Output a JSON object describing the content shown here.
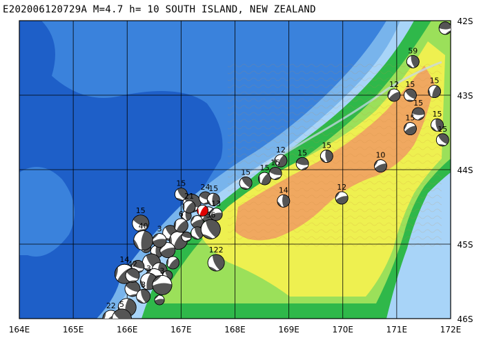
{
  "title": "E202006120729A M=4.7 h= 10 SOUTH ISLAND, NEW ZEALAND",
  "axes": {
    "longitude_ticks": [
      "164E",
      "165E",
      "166E",
      "167E",
      "168E",
      "169E",
      "170E",
      "171E",
      "172E"
    ],
    "latitude_ticks": [
      "42S",
      "43S",
      "44S",
      "45S",
      "46S"
    ],
    "lon_range": [
      164,
      172
    ],
    "lat_range": [
      -46,
      -42
    ]
  },
  "colors": {
    "deep_ocean": "#1e5fc8",
    "mid_ocean": "#3a82dc",
    "shelf": "#78b4ec",
    "shallow": "#a8d4f8",
    "lowland": "#2fb84a",
    "plain": "#9be05a",
    "hills": "#eef050",
    "mountains": "#f0a860",
    "beachball_dark": "#555555",
    "main_event": "#e00000"
  },
  "main_event": {
    "lon": 167.4,
    "lat": -44.55
  },
  "events": [
    {
      "label": "15",
      "lon": 171.9,
      "lat": -42.1
    },
    {
      "label": "59",
      "lon": 171.3,
      "lat": -42.55
    },
    {
      "label": "12",
      "lon": 170.95,
      "lat": -43.0
    },
    {
      "label": "15",
      "lon": 171.25,
      "lat": -43.0
    },
    {
      "label": "15",
      "lon": 171.7,
      "lat": -42.95
    },
    {
      "label": "15",
      "lon": 171.4,
      "lat": -43.25
    },
    {
      "label": "15",
      "lon": 171.75,
      "lat": -43.4
    },
    {
      "label": "15",
      "lon": 171.25,
      "lat": -43.45
    },
    {
      "label": "15",
      "lon": 171.85,
      "lat": -43.6
    },
    {
      "label": "12",
      "lon": 168.85,
      "lat": -43.88
    },
    {
      "label": "15",
      "lon": 169.25,
      "lat": -43.92
    },
    {
      "label": "15",
      "lon": 169.7,
      "lat": -43.82
    },
    {
      "label": "10",
      "lon": 170.7,
      "lat": -43.95
    },
    {
      "label": "15",
      "lon": 168.2,
      "lat": -44.18
    },
    {
      "label": "15",
      "lon": 168.55,
      "lat": -44.12
    },
    {
      "label": "15",
      "lon": 168.75,
      "lat": -44.05
    },
    {
      "label": "14",
      "lon": 168.9,
      "lat": -44.42
    },
    {
      "label": "12",
      "lon": 169.98,
      "lat": -44.38
    },
    {
      "label": "15",
      "lon": 167.0,
      "lat": -44.33
    },
    {
      "label": "21",
      "lon": 167.15,
      "lat": -44.5
    },
    {
      "label": "24",
      "lon": 167.45,
      "lat": -44.38
    },
    {
      "label": "15",
      "lon": 167.6,
      "lat": -44.4
    },
    {
      "label": "13",
      "lon": 167.65,
      "lat": -44.6
    },
    {
      "label": "36",
      "lon": 167.55,
      "lat": -44.8
    },
    {
      "label": "6",
      "lon": 167.0,
      "lat": -44.75
    },
    {
      "label": "15",
      "lon": 166.25,
      "lat": -44.72
    },
    {
      "label": "40",
      "lon": 166.3,
      "lat": -44.95
    },
    {
      "label": "3",
      "lon": 166.6,
      "lat": -44.95
    },
    {
      "label": "122",
      "lon": 167.65,
      "lat": -45.25
    },
    {
      "label": "14",
      "lon": 165.95,
      "lat": -45.4
    },
    {
      "label": "42",
      "lon": 166.1,
      "lat": -45.42
    },
    {
      "label": "3",
      "lon": 166.4,
      "lat": -45.5
    },
    {
      "label": "3",
      "lon": 166.65,
      "lat": -45.55
    },
    {
      "label": "3",
      "lon": 166.3,
      "lat": -45.7
    },
    {
      "label": "22",
      "lon": 165.7,
      "lat": -46.0
    },
    {
      "label": "5",
      "lon": 165.9,
      "lat": -46.0
    }
  ],
  "extra_balls": [
    {
      "lon": 167.1,
      "lat": -44.62
    },
    {
      "lon": 167.3,
      "lat": -44.7
    },
    {
      "lon": 166.8,
      "lat": -44.85
    },
    {
      "lon": 166.95,
      "lat": -44.95
    },
    {
      "lon": 167.1,
      "lat": -44.9
    },
    {
      "lon": 166.55,
      "lat": -45.1
    },
    {
      "lon": 166.75,
      "lat": -45.08
    },
    {
      "lon": 166.45,
      "lat": -45.25
    },
    {
      "lon": 166.35,
      "lat": -45.05
    },
    {
      "lon": 166.2,
      "lat": -45.3
    },
    {
      "lon": 166.6,
      "lat": -45.35
    },
    {
      "lon": 166.5,
      "lat": -45.45
    },
    {
      "lon": 166.75,
      "lat": -45.42
    },
    {
      "lon": 166.85,
      "lat": -45.25
    },
    {
      "lon": 166.1,
      "lat": -45.6
    },
    {
      "lon": 166.0,
      "lat": -45.85
    },
    {
      "lon": 166.6,
      "lat": -45.75
    },
    {
      "lon": 167.3,
      "lat": -44.85
    },
    {
      "lon": 167.5,
      "lat": -44.6
    },
    {
      "lon": 167.2,
      "lat": -44.45
    }
  ]
}
